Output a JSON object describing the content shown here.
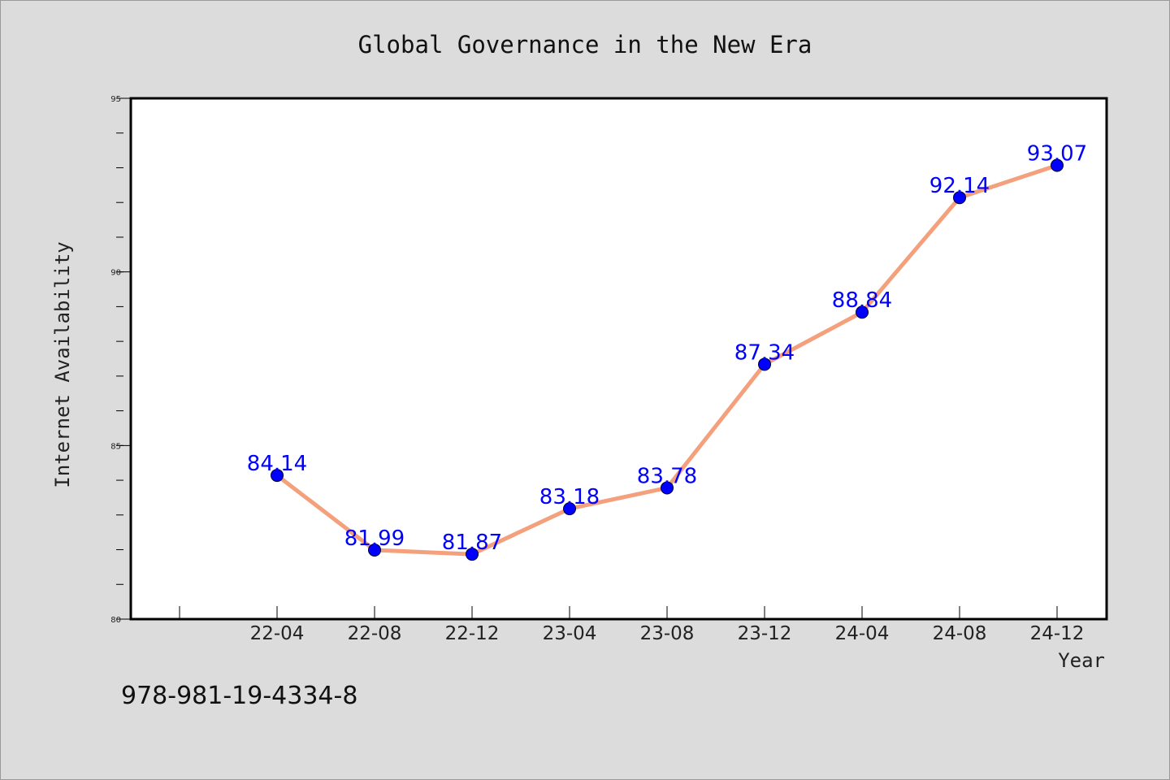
{
  "chart_data": {
    "type": "line",
    "title": "Global Governance in the New Era",
    "xlabel": "Year",
    "ylabel": "Internet Availability",
    "x": [
      "22-04",
      "22-08",
      "22-12",
      "23-04",
      "23-08",
      "23-12",
      "24-04",
      "24-08",
      "24-12"
    ],
    "values": [
      84.14,
      81.99,
      81.87,
      83.18,
      83.78,
      87.34,
      88.84,
      92.14,
      93.07
    ],
    "data_labels": [
      "84.14",
      "81.99",
      "81.87",
      "83.18",
      "83.78",
      "87.34",
      "88.84",
      "92.14",
      "93.07"
    ],
    "ylim": [
      80,
      95
    ],
    "yticks": [
      "80",
      "85",
      "90",
      "95"
    ],
    "grid": false,
    "line_color": "#f4a07c",
    "marker_color": "#0000ff",
    "label_color": "#0000ff"
  },
  "footer": {
    "isbn": "978-981-19-4334-8"
  }
}
